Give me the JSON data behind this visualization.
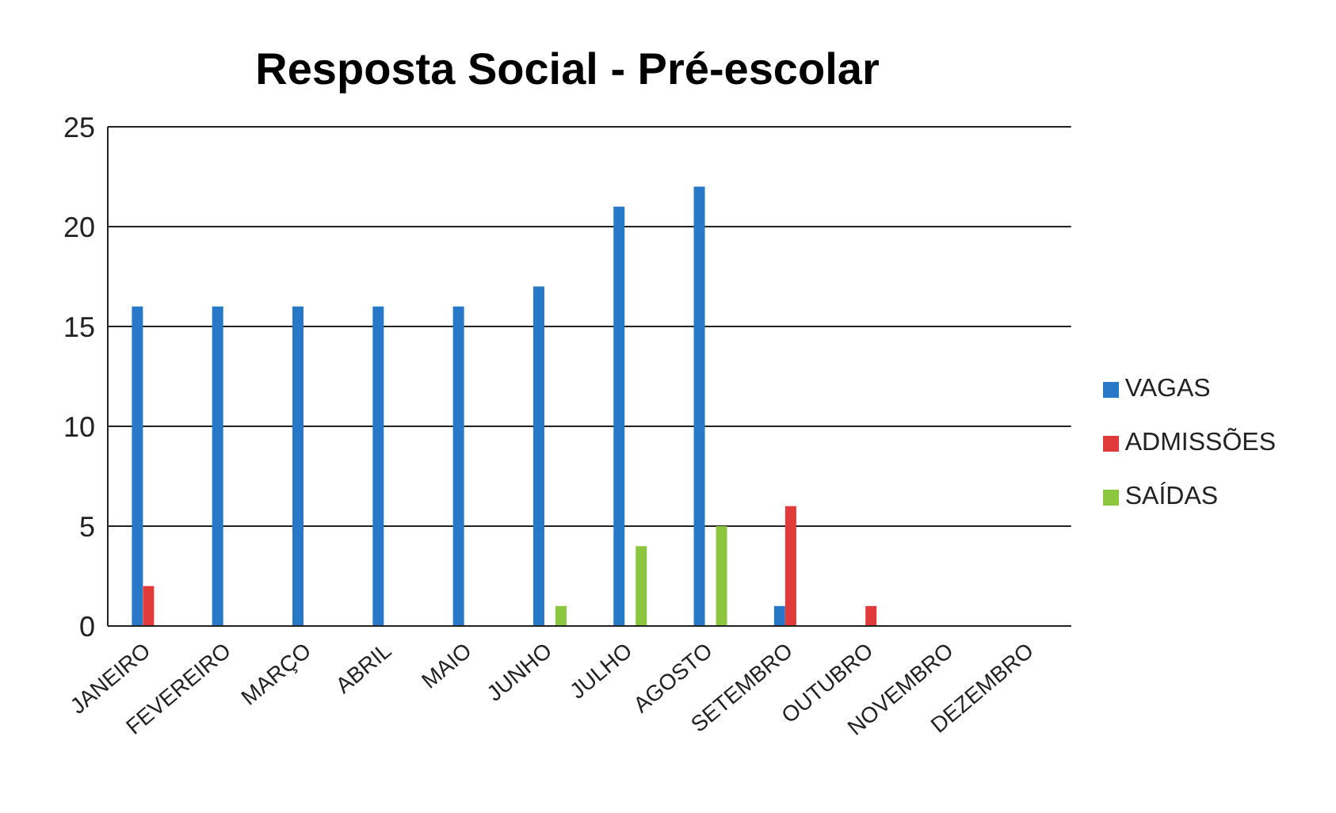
{
  "chart_data": {
    "type": "bar",
    "title": "Resposta Social - Pré-escolar",
    "categories": [
      "JANEIRO",
      "FEVEREIRO",
      "MARÇO",
      "ABRIL",
      "MAIO",
      "JUNHO",
      "JULHO",
      "AGOSTO",
      "SETEMBRO",
      "OUTUBRO",
      "NOVEMBRO",
      "DEZEMBRO"
    ],
    "series": [
      {
        "name": "VAGAS",
        "color": "#2878c8",
        "values": [
          16,
          16,
          16,
          16,
          16,
          17,
          21,
          22,
          1,
          0,
          0,
          0
        ]
      },
      {
        "name": "ADMISSÕES",
        "color": "#e03a3a",
        "values": [
          2,
          0,
          0,
          0,
          0,
          0,
          0,
          0,
          6,
          1,
          0,
          0
        ]
      },
      {
        "name": "SAÍDAS",
        "color": "#8cc63f",
        "values": [
          0,
          0,
          0,
          0,
          0,
          1,
          4,
          5,
          0,
          0,
          0,
          0
        ]
      }
    ],
    "ylim": [
      0,
      25
    ],
    "yticks": [
      0,
      5,
      10,
      15,
      20,
      25
    ],
    "grid": "y",
    "legend": "right"
  }
}
